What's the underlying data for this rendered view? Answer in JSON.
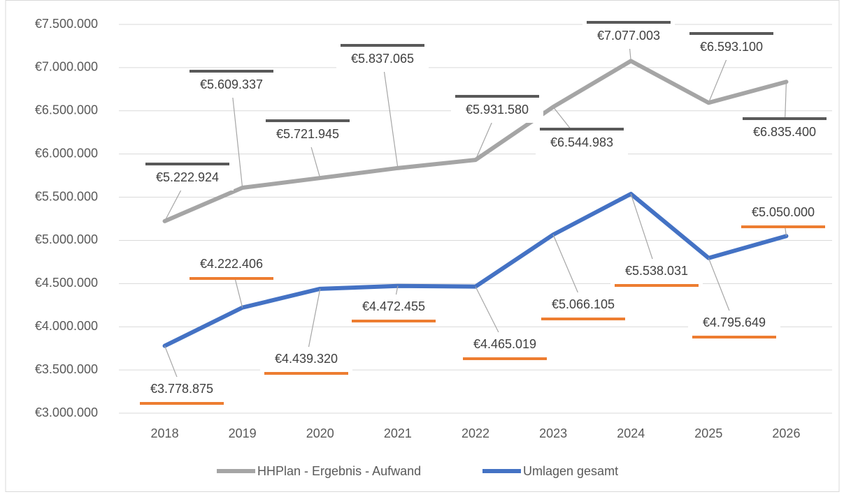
{
  "chart_data": {
    "type": "line",
    "categories": [
      "2018",
      "2019",
      "2020",
      "2021",
      "2022",
      "2023",
      "2024",
      "2025",
      "2026"
    ],
    "series": [
      {
        "name": "HHPlan - Ergebnis - Aufwand",
        "color": "#a5a5a5",
        "values": [
          5222924,
          5609337,
          5721945,
          5837065,
          5931580,
          6544983,
          7077003,
          6593100,
          6835400
        ],
        "value_labels": [
          "€5.222.924",
          "€5.609.337",
          "€5.721.945",
          "€5.837.065",
          "€5.931.580",
          "€6.544.983",
          "€7.077.003",
          "€6.593.100",
          "€6.835.400"
        ]
      },
      {
        "name": "Umlagen gesamt",
        "color": "#4472c4",
        "values": [
          3778875,
          4222406,
          4439320,
          4472455,
          4465019,
          5066105,
          5538031,
          4795649,
          5050000
        ],
        "value_labels": [
          "€3.778.875",
          "€4.222.406",
          "€4.439.320",
          "€4.472.455",
          "€4.465.019",
          "€5.066.105",
          "€5.538.031",
          "€4.795.649",
          "€5.050.000"
        ]
      }
    ],
    "ylim": [
      3000000,
      7500000
    ],
    "yticks": [
      {
        "value": 3000000,
        "label": "€3.000.000"
      },
      {
        "value": 3500000,
        "label": "€3.500.000"
      },
      {
        "value": 4000000,
        "label": "€4.000.000"
      },
      {
        "value": 4500000,
        "label": "€4.500.000"
      },
      {
        "value": 5000000,
        "label": "€5.000.000"
      },
      {
        "value": 5500000,
        "label": "€5.500.000"
      },
      {
        "value": 6000000,
        "label": "€6.000.000"
      },
      {
        "value": 6500000,
        "label": "€6.500.000"
      },
      {
        "value": 7000000,
        "label": "€7.000.000"
      },
      {
        "value": 7500000,
        "label": "€7.500.000"
      }
    ],
    "grid": true,
    "legend": "bottom"
  }
}
